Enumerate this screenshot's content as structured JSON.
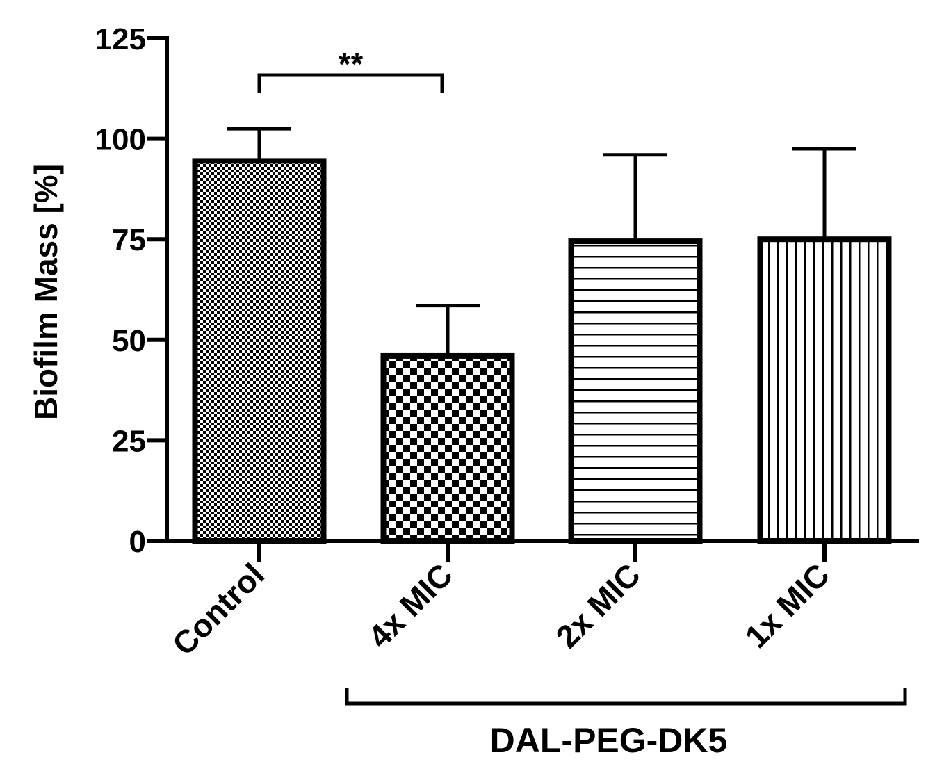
{
  "chart_data": {
    "type": "bar",
    "ylabel": "Biofilm Mass [%]",
    "ylim": [
      0,
      125
    ],
    "yticks": [
      0,
      25,
      50,
      75,
      100,
      125
    ],
    "ytick_labels": [
      "0",
      "25",
      "50",
      "75",
      "100",
      "125"
    ],
    "categories": [
      "Control",
      "4x MIC",
      "2x MIC",
      "1x MIC"
    ],
    "values": [
      94.5,
      46,
      74.5,
      75
    ],
    "error_upper": [
      102.5,
      58.5,
      96,
      97.5
    ],
    "patterns": [
      "fine-checker",
      "coarse-checker",
      "horizontal-lines",
      "vertical-lines"
    ],
    "group": {
      "label": "DAL-PEG-DK5",
      "from_category": 1,
      "to_category": 3
    },
    "significance": {
      "label": "**",
      "from_category": 0,
      "to_category": 1
    },
    "grid": false,
    "legend": "none"
  }
}
